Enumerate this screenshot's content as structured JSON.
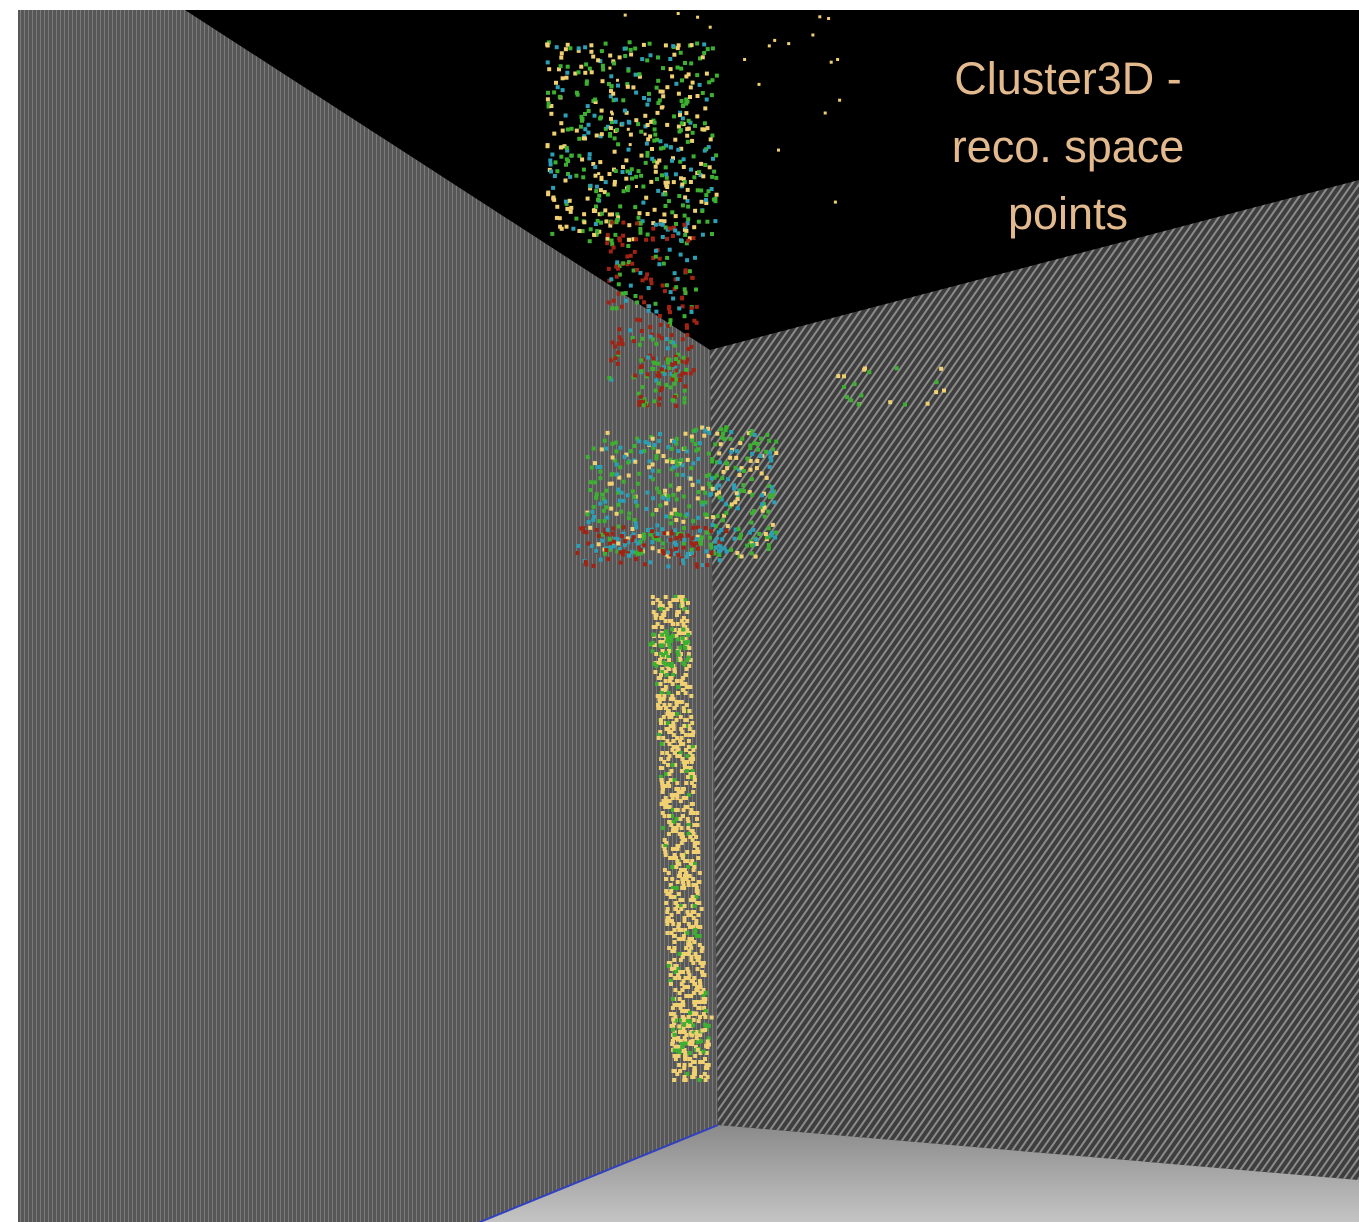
{
  "caption": {
    "lines": [
      "Cluster3D -",
      "reco. space",
      "points"
    ]
  }
}
